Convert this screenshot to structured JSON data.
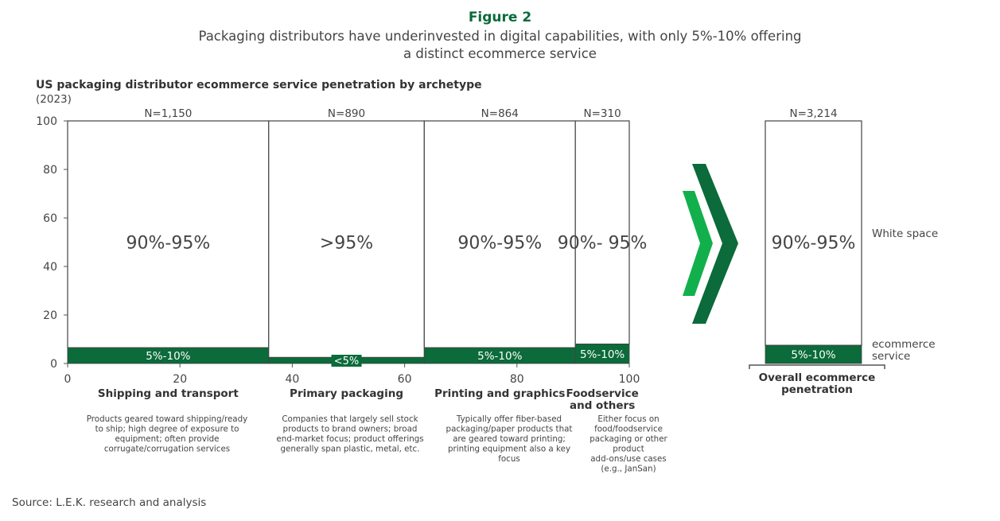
{
  "figure_label": "Figure 2",
  "subtitle_line1": "Packaging distributors have underinvested in digital capabilities, with only 5%-10% offering",
  "subtitle_line2": "a distinct ecommerce service",
  "source": "Source: L.E.K. research and analysis",
  "colors": {
    "ecommerce": "#0b6b3a",
    "arrow_light": "#12b04c",
    "arrow_dark": "#0b6b3a",
    "title_green": "#0b6b3a"
  },
  "chart_data": {
    "type": "marimekko",
    "title": "US packaging distributor ecommerce service penetration by archetype",
    "subtitle": "(2023)",
    "xlim": [
      0,
      100
    ],
    "ylim": [
      0,
      100
    ],
    "x_ticks": [
      "0",
      "20",
      "40",
      "60",
      "80",
      "100"
    ],
    "y_ticks": [
      "0",
      "20",
      "40",
      "60",
      "80",
      "100"
    ],
    "series": [
      {
        "name": "White space"
      },
      {
        "name": "ecommerce service"
      }
    ],
    "segments": [
      {
        "name": "Shipping and transport",
        "n_label": "N=1,150",
        "x_start": 0,
        "x_end": 35.8,
        "ecommerce_value": 6.5,
        "ecommerce_label": "5%-10%",
        "white_label": "90%-95%",
        "description": [
          "Products geared toward shipping/ready",
          "to ship; high degree of exposure to",
          "equipment; often provide",
          "corrugate/corrugation services"
        ]
      },
      {
        "name": "Primary packaging",
        "n_label": "N=890",
        "x_start": 35.8,
        "x_end": 63.5,
        "ecommerce_value": 2.5,
        "ecommerce_label": "<5%",
        "white_label": ">95%",
        "description": [
          "Companies that largely sell stock",
          "products to brand owners; broad",
          "end-market focus; product offerings",
          "generally span plastic, metal, etc."
        ]
      },
      {
        "name": "Printing and graphics",
        "n_label": "N=864",
        "x_start": 63.5,
        "x_end": 90.4,
        "ecommerce_value": 6.5,
        "ecommerce_label": "5%-10%",
        "white_label": "90%-95%",
        "description": [
          "Typically offer fiber-based",
          "packaging/paper products that",
          "are geared toward printing;",
          "printing equipment also a key",
          "focus"
        ]
      },
      {
        "name": "Foodservice and others",
        "n_label": "N=310",
        "x_start": 90.4,
        "x_end": 100,
        "ecommerce_value": 8,
        "ecommerce_label": "5%-10%",
        "white_label": "90%- 95%",
        "description": [
          "Either focus on",
          "food/foodservice",
          "packaging or other",
          "product",
          "add-ons/use cases",
          "(e.g., JanSan)"
        ]
      }
    ],
    "overall": {
      "name": "Overall ecommerce penetration",
      "n_label": "N=3,214",
      "ecommerce_value": 7.5,
      "ecommerce_label": "5%-10%",
      "white_label": "90%-95%"
    },
    "legend": [
      "White space",
      "ecommerce service"
    ]
  }
}
